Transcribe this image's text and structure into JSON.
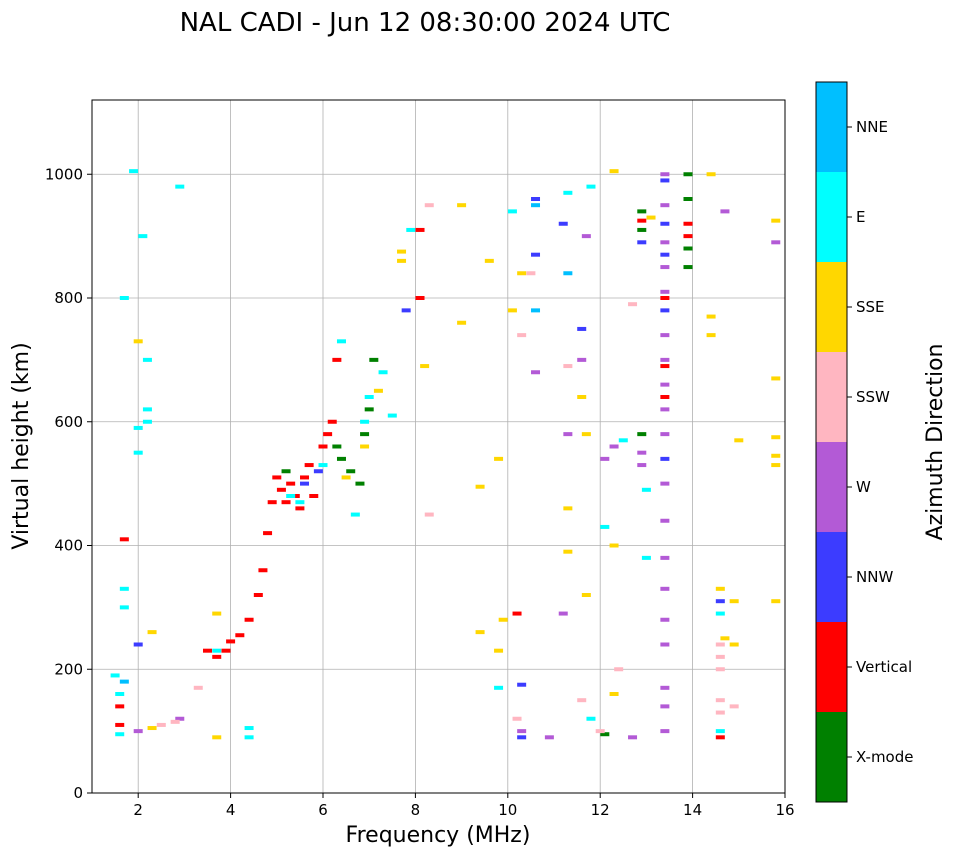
{
  "chart_data": {
    "type": "scatter",
    "title": "NAL CADI - Jun 12 08:30:00 2024 UTC",
    "xlabel": "Frequency (MHz)",
    "ylabel": "Virtual height (km)",
    "xlim": [
      1,
      16
    ],
    "ylim": [
      0,
      1120
    ],
    "xticks": [
      2,
      4,
      6,
      8,
      10,
      12,
      14,
      16
    ],
    "yticks": [
      0,
      200,
      400,
      600,
      800,
      1000
    ],
    "grid": true,
    "colorbar": {
      "title": "Azimuth Direction",
      "categories": [
        "X-mode",
        "Vertical",
        "NNW",
        "W",
        "SSW",
        "SSE",
        "E",
        "NNE"
      ],
      "colors": [
        "#008000",
        "#ff0000",
        "#3c3cff",
        "#b35ad6",
        "#ffb6c1",
        "#ffd700",
        "#00ffff",
        "#00bfff"
      ]
    },
    "series": [
      {
        "name": "X-mode",
        "points": [
          [
            6.3,
            560
          ],
          [
            6.6,
            520
          ],
          [
            6.9,
            580
          ],
          [
            7.0,
            620
          ],
          [
            7.1,
            700
          ],
          [
            6.8,
            500
          ],
          [
            12.9,
            940
          ],
          [
            12.9,
            910
          ],
          [
            12.9,
            580
          ],
          [
            13.9,
            1000
          ],
          [
            13.9,
            960
          ],
          [
            13.9,
            880
          ],
          [
            13.9,
            850
          ],
          [
            12.1,
            95
          ],
          [
            5.2,
            520
          ],
          [
            6.4,
            540
          ]
        ]
      },
      {
        "name": "Vertical",
        "points": [
          [
            1.6,
            110
          ],
          [
            1.6,
            140
          ],
          [
            1.7,
            410
          ],
          [
            3.9,
            230
          ],
          [
            4.0,
            245
          ],
          [
            4.2,
            255
          ],
          [
            4.4,
            280
          ],
          [
            4.6,
            320
          ],
          [
            4.7,
            360
          ],
          [
            4.8,
            420
          ],
          [
            4.9,
            470
          ],
          [
            5.0,
            510
          ],
          [
            5.1,
            490
          ],
          [
            5.2,
            470
          ],
          [
            5.3,
            500
          ],
          [
            5.4,
            480
          ],
          [
            5.5,
            460
          ],
          [
            5.6,
            510
          ],
          [
            5.8,
            480
          ],
          [
            6.0,
            560
          ],
          [
            6.2,
            600
          ],
          [
            6.3,
            700
          ],
          [
            8.1,
            800
          ],
          [
            8.1,
            910
          ],
          [
            10.2,
            290
          ],
          [
            12.9,
            925
          ],
          [
            13.9,
            900
          ],
          [
            13.9,
            920
          ],
          [
            14.6,
            90
          ],
          [
            13.4,
            640
          ],
          [
            13.4,
            690
          ],
          [
            13.4,
            800
          ],
          [
            3.5,
            230
          ],
          [
            3.7,
            220
          ],
          [
            5.7,
            530
          ],
          [
            6.1,
            580
          ]
        ]
      },
      {
        "name": "NNW",
        "points": [
          [
            10.6,
            960
          ],
          [
            10.6,
            870
          ],
          [
            10.3,
            90
          ],
          [
            10.3,
            175
          ],
          [
            11.2,
            920
          ],
          [
            11.6,
            750
          ],
          [
            12.9,
            890
          ],
          [
            13.4,
            990
          ],
          [
            13.4,
            920
          ],
          [
            13.4,
            870
          ],
          [
            13.4,
            540
          ],
          [
            13.4,
            780
          ],
          [
            14.6,
            310
          ],
          [
            5.6,
            500
          ],
          [
            5.9,
            520
          ],
          [
            2.0,
            240
          ],
          [
            7.8,
            780
          ]
        ]
      },
      {
        "name": "W",
        "points": [
          [
            10.3,
            100
          ],
          [
            10.6,
            680
          ],
          [
            10.9,
            90
          ],
          [
            11.2,
            290
          ],
          [
            11.3,
            580
          ],
          [
            11.6,
            700
          ],
          [
            11.7,
            900
          ],
          [
            12.1,
            540
          ],
          [
            12.3,
            560
          ],
          [
            12.9,
            550
          ],
          [
            12.9,
            530
          ],
          [
            13.4,
            1000
          ],
          [
            13.4,
            950
          ],
          [
            13.4,
            890
          ],
          [
            13.4,
            850
          ],
          [
            13.4,
            810
          ],
          [
            13.4,
            740
          ],
          [
            13.4,
            700
          ],
          [
            13.4,
            660
          ],
          [
            13.4,
            620
          ],
          [
            13.4,
            580
          ],
          [
            13.4,
            500
          ],
          [
            13.4,
            440
          ],
          [
            13.4,
            380
          ],
          [
            13.4,
            330
          ],
          [
            13.4,
            280
          ],
          [
            13.4,
            240
          ],
          [
            13.4,
            170
          ],
          [
            13.4,
            140
          ],
          [
            13.4,
            100
          ],
          [
            14.7,
            940
          ],
          [
            15.8,
            890
          ],
          [
            12.7,
            90
          ],
          [
            2.0,
            100
          ],
          [
            2.9,
            120
          ]
        ]
      },
      {
        "name": "SSW",
        "points": [
          [
            8.3,
            950
          ],
          [
            8.3,
            450
          ],
          [
            10.2,
            120
          ],
          [
            10.3,
            740
          ],
          [
            10.5,
            840
          ],
          [
            11.3,
            690
          ],
          [
            11.6,
            150
          ],
          [
            12.0,
            100
          ],
          [
            12.4,
            200
          ],
          [
            12.7,
            790
          ],
          [
            14.6,
            240
          ],
          [
            14.6,
            220
          ],
          [
            14.6,
            200
          ],
          [
            14.6,
            150
          ],
          [
            14.6,
            130
          ],
          [
            14.9,
            140
          ],
          [
            2.5,
            110
          ],
          [
            2.8,
            115
          ],
          [
            3.3,
            170
          ]
        ]
      },
      {
        "name": "SSE",
        "points": [
          [
            2.0,
            730
          ],
          [
            2.3,
            260
          ],
          [
            2.3,
            105
          ],
          [
            3.7,
            290
          ],
          [
            3.7,
            90
          ],
          [
            7.7,
            860
          ],
          [
            7.7,
            875
          ],
          [
            8.2,
            690
          ],
          [
            9.0,
            950
          ],
          [
            9.0,
            760
          ],
          [
            9.4,
            260
          ],
          [
            9.4,
            495
          ],
          [
            9.6,
            860
          ],
          [
            9.8,
            540
          ],
          [
            9.8,
            230
          ],
          [
            9.9,
            280
          ],
          [
            10.1,
            780
          ],
          [
            10.3,
            840
          ],
          [
            11.3,
            460
          ],
          [
            11.3,
            390
          ],
          [
            11.6,
            640
          ],
          [
            11.7,
            580
          ],
          [
            11.7,
            320
          ],
          [
            12.3,
            1005
          ],
          [
            12.3,
            400
          ],
          [
            12.3,
            160
          ],
          [
            13.1,
            930
          ],
          [
            14.4,
            1000
          ],
          [
            14.4,
            770
          ],
          [
            14.4,
            740
          ],
          [
            14.6,
            330
          ],
          [
            14.7,
            250
          ],
          [
            14.9,
            240
          ],
          [
            14.9,
            310
          ],
          [
            15.0,
            570
          ],
          [
            15.8,
            925
          ],
          [
            15.8,
            670
          ],
          [
            15.8,
            575
          ],
          [
            15.8,
            545
          ],
          [
            15.8,
            530
          ],
          [
            15.8,
            310
          ],
          [
            6.5,
            510
          ],
          [
            6.9,
            560
          ],
          [
            7.2,
            650
          ]
        ]
      },
      {
        "name": "E",
        "points": [
          [
            1.5,
            190
          ],
          [
            1.6,
            160
          ],
          [
            1.6,
            95
          ],
          [
            1.7,
            330
          ],
          [
            1.7,
            300
          ],
          [
            1.7,
            800
          ],
          [
            1.9,
            1005
          ],
          [
            2.0,
            590
          ],
          [
            2.0,
            550
          ],
          [
            2.1,
            900
          ],
          [
            2.2,
            700
          ],
          [
            2.2,
            620
          ],
          [
            2.2,
            600
          ],
          [
            2.9,
            980
          ],
          [
            3.7,
            230
          ],
          [
            4.4,
            90
          ],
          [
            4.4,
            105
          ],
          [
            6.4,
            730
          ],
          [
            6.9,
            600
          ],
          [
            7.0,
            640
          ],
          [
            7.3,
            680
          ],
          [
            7.5,
            610
          ],
          [
            7.9,
            910
          ],
          [
            9.8,
            170
          ],
          [
            10.1,
            940
          ],
          [
            11.3,
            970
          ],
          [
            11.8,
            980
          ],
          [
            11.8,
            120
          ],
          [
            12.1,
            430
          ],
          [
            12.5,
            570
          ],
          [
            13.0,
            490
          ],
          [
            13.0,
            380
          ],
          [
            14.6,
            290
          ],
          [
            14.6,
            100
          ],
          [
            5.3,
            480
          ],
          [
            5.5,
            470
          ],
          [
            6.0,
            530
          ],
          [
            6.7,
            450
          ]
        ]
      },
      {
        "name": "NNE",
        "points": [
          [
            1.7,
            180
          ],
          [
            10.6,
            950
          ],
          [
            10.6,
            780
          ],
          [
            11.3,
            840
          ]
        ]
      }
    ]
  }
}
